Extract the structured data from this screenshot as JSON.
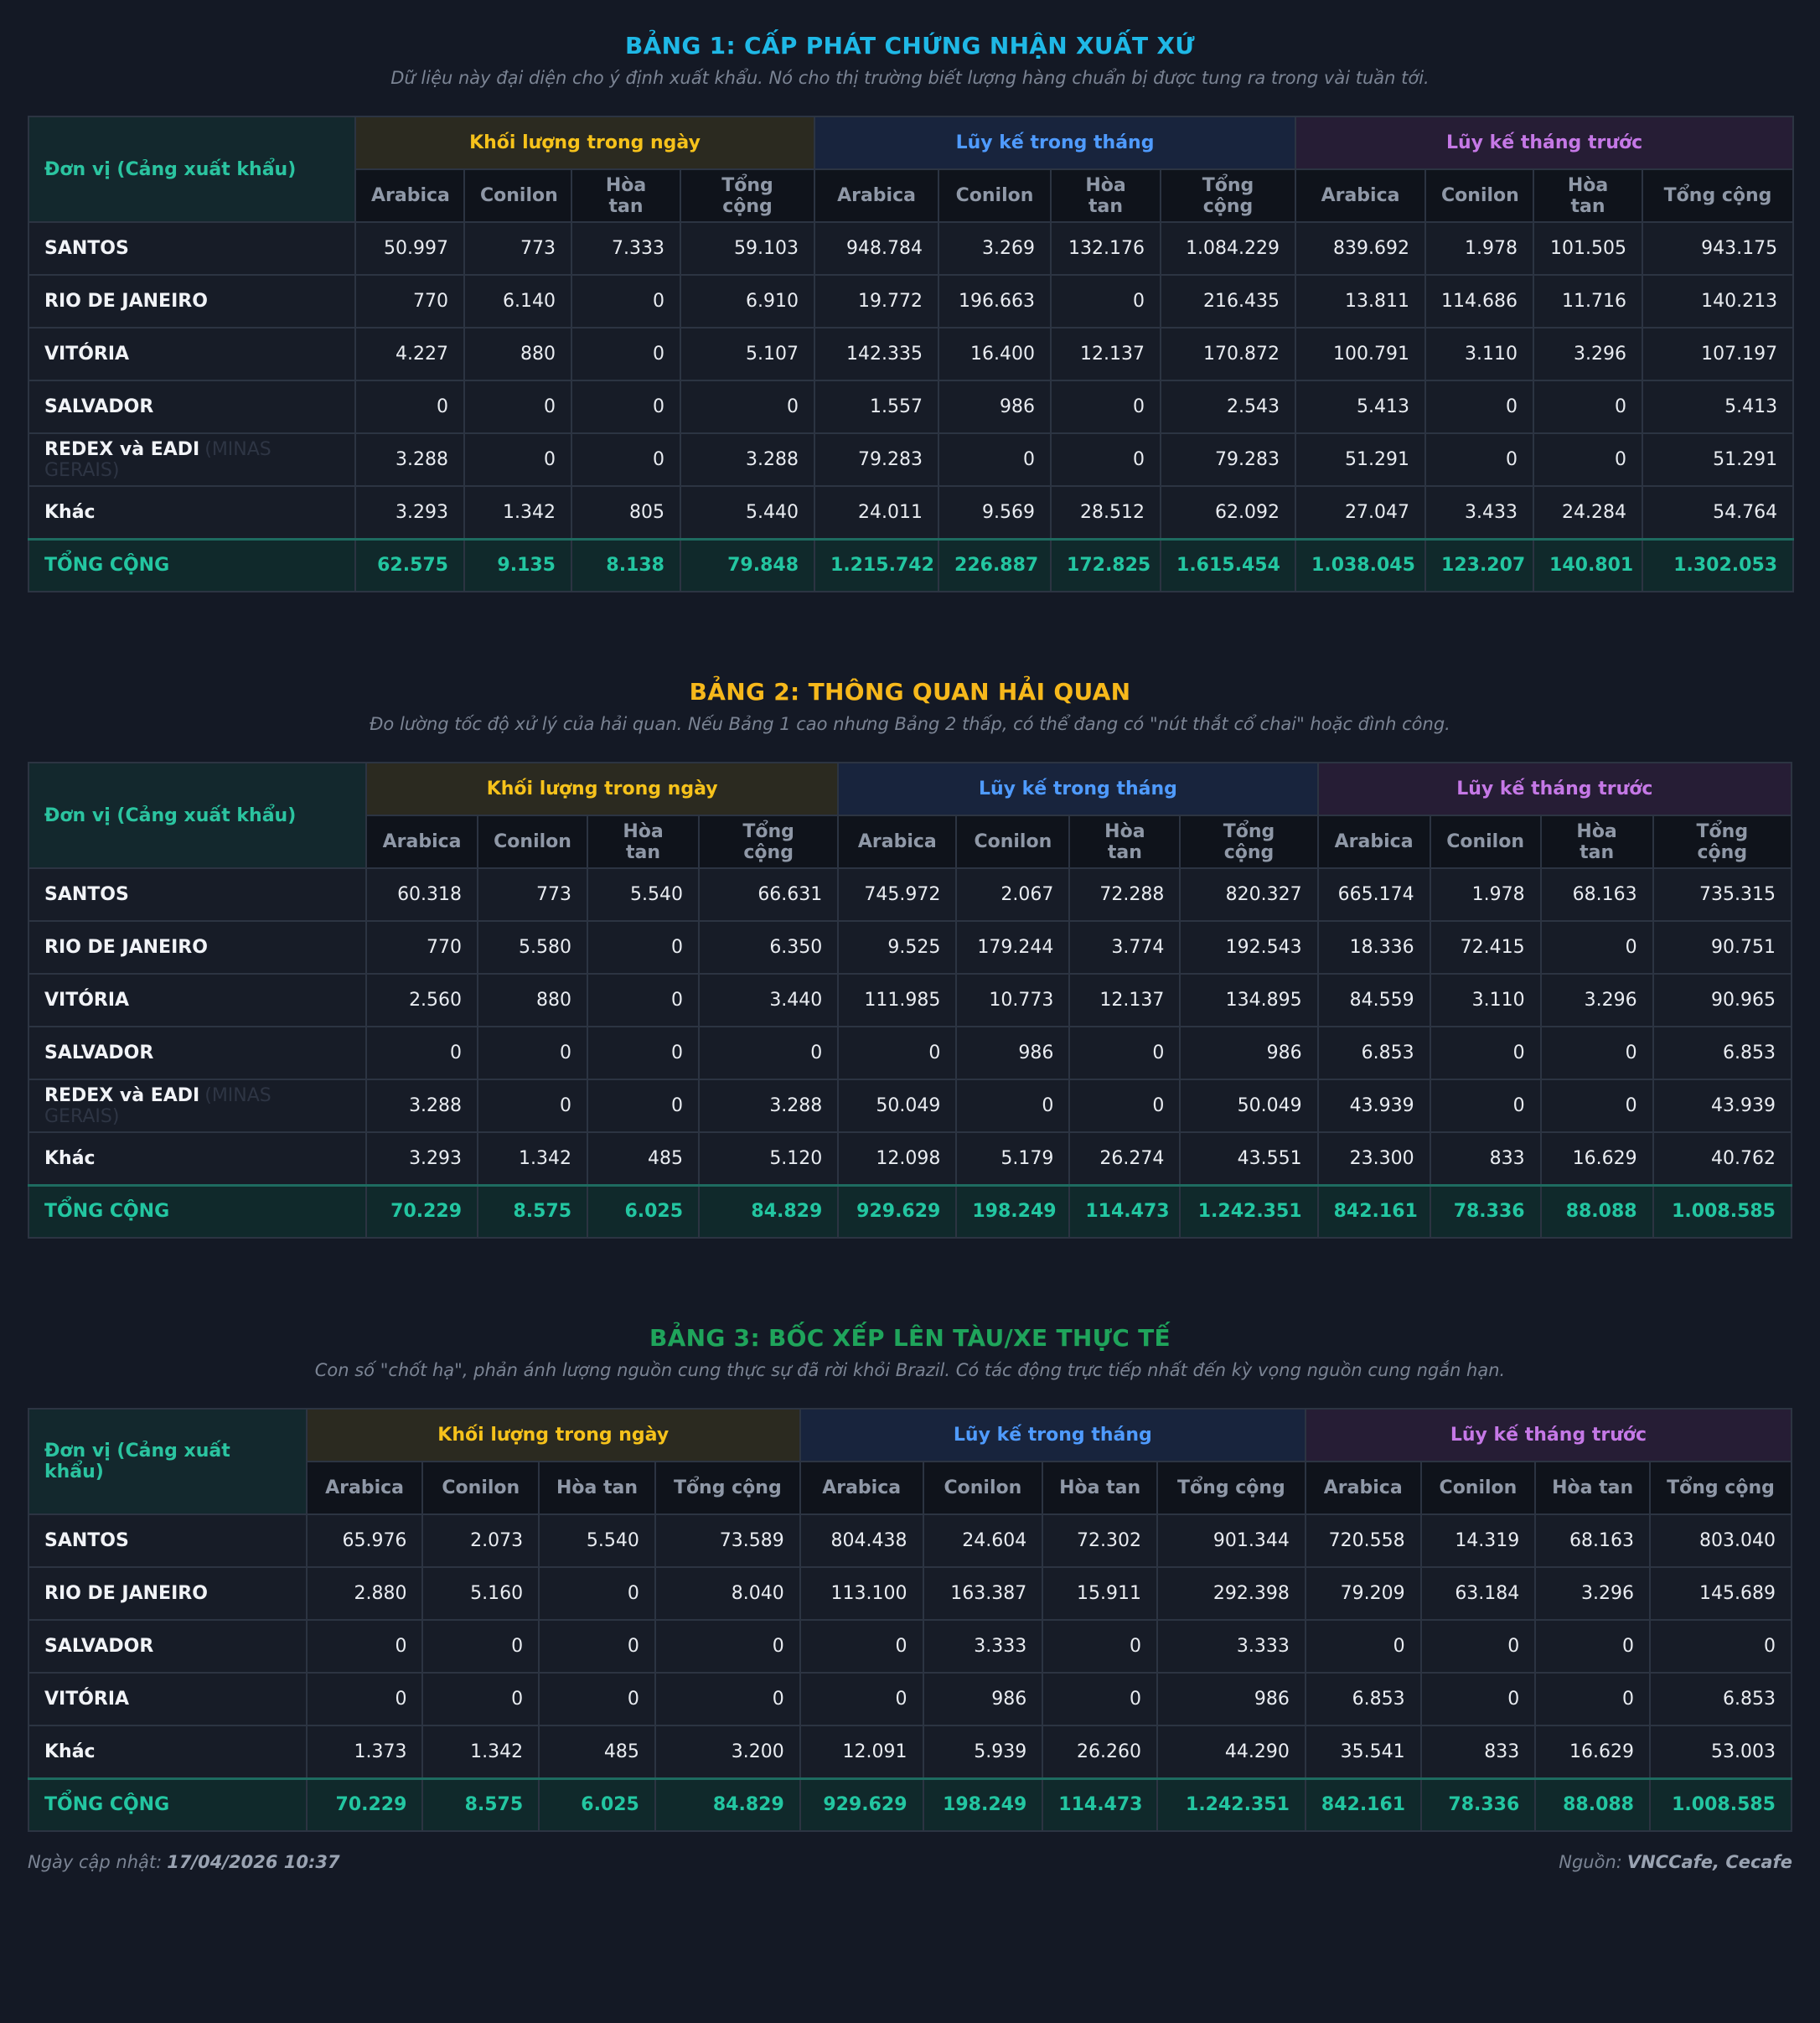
{
  "tables": [
    {
      "title": "BẢNG 1: CẤP PHÁT CHỨNG NHẬN XUẤT XỨ",
      "title_color": "#1fb8e6",
      "subtitle": "Dữ liệu này đại diện cho ý định xuất khẩu. Nó cho thị trường biết lượng hàng chuẩn bị được tung ra trong vài tuần tới.",
      "unit_header": "Đơn vị (Cảng xuất khẩu)",
      "groups": [
        "Khối lượng trong ngày",
        "Lũy kế trong tháng",
        "Lũy kế tháng trước"
      ],
      "columns": [
        "Arabica",
        "Conilon",
        "Hòa tan",
        "Tổng cộng"
      ],
      "rows": [
        {
          "name": "SANTOS",
          "extra": "",
          "values": [
            "50.997",
            "773",
            "7.333",
            "59.103",
            "948.784",
            "3.269",
            "132.176",
            "1.084.229",
            "839.692",
            "1.978",
            "101.505",
            "943.175"
          ]
        },
        {
          "name": "RIO DE JANEIRO",
          "extra": "",
          "values": [
            "770",
            "6.140",
            "0",
            "6.910",
            "19.772",
            "196.663",
            "0",
            "216.435",
            "13.811",
            "114.686",
            "11.716",
            "140.213"
          ]
        },
        {
          "name": "VITÓRIA",
          "extra": "",
          "values": [
            "4.227",
            "880",
            "0",
            "5.107",
            "142.335",
            "16.400",
            "12.137",
            "170.872",
            "100.791",
            "3.110",
            "3.296",
            "107.197"
          ]
        },
        {
          "name": "SALVADOR",
          "extra": "",
          "values": [
            "0",
            "0",
            "0",
            "0",
            "1.557",
            "986",
            "0",
            "2.543",
            "5.413",
            "0",
            "0",
            "5.413"
          ]
        },
        {
          "name": "REDEX và EADI",
          "extra": "(MINAS GERAIS)",
          "values": [
            "3.288",
            "0",
            "0",
            "3.288",
            "79.283",
            "0",
            "0",
            "79.283",
            "51.291",
            "0",
            "0",
            "51.291"
          ]
        },
        {
          "name": "Khác",
          "extra": "",
          "values": [
            "3.293",
            "1.342",
            "805",
            "5.440",
            "24.011",
            "9.569",
            "28.512",
            "62.092",
            "27.047",
            "3.433",
            "24.284",
            "54.764"
          ]
        }
      ],
      "total": {
        "name": "TỔNG CỘNG",
        "values": [
          "62.575",
          "9.135",
          "8.138",
          "79.848",
          "1.215.742",
          "226.887",
          "172.825",
          "1.615.454",
          "1.038.045",
          "123.207",
          "140.801",
          "1.302.053"
        ]
      }
    },
    {
      "title": "BẢNG 2: THÔNG QUAN HẢI QUAN",
      "title_color": "#f6b81b",
      "subtitle": "Đo lường tốc độ xử lý của hải quan. Nếu Bảng 1 cao nhưng Bảng 2 thấp, có thể đang có \"nút thắt cổ chai\" hoặc đình công.",
      "unit_header": "Đơn vị (Cảng xuất khẩu)",
      "groups": [
        "Khối lượng trong ngày",
        "Lũy kế trong tháng",
        "Lũy kế tháng trước"
      ],
      "columns": [
        "Arabica",
        "Conilon",
        "Hòa tan",
        "Tổng cộng"
      ],
      "rows": [
        {
          "name": "SANTOS",
          "extra": "",
          "values": [
            "60.318",
            "773",
            "5.540",
            "66.631",
            "745.972",
            "2.067",
            "72.288",
            "820.327",
            "665.174",
            "1.978",
            "68.163",
            "735.315"
          ]
        },
        {
          "name": "RIO DE JANEIRO",
          "extra": "",
          "values": [
            "770",
            "5.580",
            "0",
            "6.350",
            "9.525",
            "179.244",
            "3.774",
            "192.543",
            "18.336",
            "72.415",
            "0",
            "90.751"
          ]
        },
        {
          "name": "VITÓRIA",
          "extra": "",
          "values": [
            "2.560",
            "880",
            "0",
            "3.440",
            "111.985",
            "10.773",
            "12.137",
            "134.895",
            "84.559",
            "3.110",
            "3.296",
            "90.965"
          ]
        },
        {
          "name": "SALVADOR",
          "extra": "",
          "values": [
            "0",
            "0",
            "0",
            "0",
            "0",
            "986",
            "0",
            "986",
            "6.853",
            "0",
            "0",
            "6.853"
          ]
        },
        {
          "name": "REDEX và EADI",
          "extra": "(MINAS GERAIS)",
          "values": [
            "3.288",
            "0",
            "0",
            "3.288",
            "50.049",
            "0",
            "0",
            "50.049",
            "43.939",
            "0",
            "0",
            "43.939"
          ]
        },
        {
          "name": "Khác",
          "extra": "",
          "values": [
            "3.293",
            "1.342",
            "485",
            "5.120",
            "12.098",
            "5.179",
            "26.274",
            "43.551",
            "23.300",
            "833",
            "16.629",
            "40.762"
          ]
        }
      ],
      "total": {
        "name": "TỔNG CỘNG",
        "values": [
          "70.229",
          "8.575",
          "6.025",
          "84.829",
          "929.629",
          "198.249",
          "114.473",
          "1.242.351",
          "842.161",
          "78.336",
          "88.088",
          "1.008.585"
        ]
      }
    },
    {
      "title": "BẢNG 3: BỐC XẾP LÊN TÀU/XE THỰC TẾ",
      "title_color": "#1fa45b",
      "subtitle": "Con số \"chốt hạ\", phản ánh lượng nguồn cung thực sự đã rời khỏi Brazil. Có tác động trực tiếp nhất đến kỳ vọng nguồn cung ngắn hạn.",
      "unit_header": "Đơn vị (Cảng xuất khẩu)",
      "groups": [
        "Khối lượng trong ngày",
        "Lũy kế trong tháng",
        "Lũy kế tháng trước"
      ],
      "columns": [
        "Arabica",
        "Conilon",
        "Hòa tan",
        "Tổng cộng"
      ],
      "rows": [
        {
          "name": "SANTOS",
          "extra": "",
          "values": [
            "65.976",
            "2.073",
            "5.540",
            "73.589",
            "804.438",
            "24.604",
            "72.302",
            "901.344",
            "720.558",
            "14.319",
            "68.163",
            "803.040"
          ]
        },
        {
          "name": "RIO DE JANEIRO",
          "extra": "",
          "values": [
            "2.880",
            "5.160",
            "0",
            "8.040",
            "113.100",
            "163.387",
            "15.911",
            "292.398",
            "79.209",
            "63.184",
            "3.296",
            "145.689"
          ]
        },
        {
          "name": "SALVADOR",
          "extra": "",
          "values": [
            "0",
            "0",
            "0",
            "0",
            "0",
            "3.333",
            "0",
            "3.333",
            "0",
            "0",
            "0",
            "0"
          ]
        },
        {
          "name": "VITÓRIA",
          "extra": "",
          "values": [
            "0",
            "0",
            "0",
            "0",
            "0",
            "986",
            "0",
            "986",
            "6.853",
            "0",
            "0",
            "6.853"
          ]
        },
        {
          "name": "Khác",
          "extra": "",
          "values": [
            "1.373",
            "1.342",
            "485",
            "3.200",
            "12.091",
            "5.939",
            "26.260",
            "44.290",
            "35.541",
            "833",
            "16.629",
            "53.003"
          ]
        }
      ],
      "total": {
        "name": "TỔNG CỘNG",
        "values": [
          "70.229",
          "8.575",
          "6.025",
          "84.829",
          "929.629",
          "198.249",
          "114.473",
          "1.242.351",
          "842.161",
          "78.336",
          "88.088",
          "1.008.585"
        ]
      }
    }
  ],
  "footer": {
    "updated_label": "Ngày cập nhật:",
    "updated_value": "17/04/2026 10:37",
    "source_label": "Nguồn:",
    "source_value": "VNCCafe, Cecafe"
  }
}
